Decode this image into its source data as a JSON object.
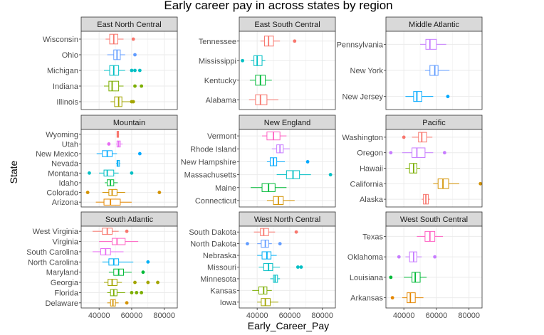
{
  "chart_data": {
    "type": "boxplot",
    "title": "Early career pay in across states by region",
    "xlabel": "Early_Career_Pay",
    "ylabel": "State",
    "x_ticks": [
      40000,
      60000,
      80000
    ],
    "x_tick_labels": [
      "40000",
      "60000",
      "80000"
    ],
    "xlim": [
      29000,
      88000
    ],
    "grid": true,
    "colors": {
      "background": "#ffffff",
      "panel": "#ffffff",
      "grid": "#ebebeb",
      "strip": "#d9d9d9",
      "panel_border": "#333333"
    },
    "panels": [
      {
        "region": "East North Central",
        "states": [
          {
            "name": "Wisconsin",
            "color": "#F8766D",
            "whisker_lo": 44000,
            "q1": 46500,
            "median": 49000,
            "q3": 51500,
            "whisker_hi": 55000,
            "outliers": [
              61000
            ]
          },
          {
            "name": "Ohio",
            "color": "#619CFF",
            "whisker_lo": 45000,
            "q1": 49000,
            "median": 51000,
            "q3": 53000,
            "whisker_hi": 56000,
            "outliers": [
              62000
            ]
          },
          {
            "name": "Michigan",
            "color": "#00BFC4",
            "whisker_lo": 43000,
            "q1": 46500,
            "median": 49000,
            "q3": 52000,
            "whisker_hi": 56000,
            "outliers": [
              60000,
              62000,
              65000
            ]
          },
          {
            "name": "Indiana",
            "color": "#7CAE00",
            "whisker_lo": 43000,
            "q1": 46000,
            "median": 48000,
            "q3": 52000,
            "whisker_hi": 55000,
            "outliers": [
              62000,
              66000
            ]
          },
          {
            "name": "Illinois",
            "color": "#A3A500",
            "whisker_lo": 47000,
            "q1": 49500,
            "median": 52000,
            "q3": 54000,
            "whisker_hi": 60000,
            "outliers": [
              60000,
              61000
            ]
          }
        ]
      },
      {
        "region": "East South Central",
        "states": [
          {
            "name": "Tennessee",
            "color": "#F8766D",
            "whisker_lo": 42000,
            "q1": 44500,
            "median": 47000,
            "q3": 50000,
            "whisker_hi": 54000,
            "outliers": [
              63000
            ]
          },
          {
            "name": "Mississippi",
            "color": "#00BFC4",
            "whisker_lo": 36000,
            "q1": 38000,
            "median": 40000,
            "q3": 43000,
            "whisker_hi": 45000,
            "outliers": [
              31000
            ]
          },
          {
            "name": "Kentucky",
            "color": "#00BA38",
            "whisker_lo": 35500,
            "q1": 39000,
            "median": 42000,
            "q3": 45000,
            "whisker_hi": 49000,
            "outliers": []
          },
          {
            "name": "Alabama",
            "color": "#F8766D",
            "whisker_lo": 35000,
            "q1": 39000,
            "median": 42000,
            "q3": 46000,
            "whisker_hi": 53000,
            "outliers": []
          }
        ]
      },
      {
        "region": "Middle Atlantic",
        "states": [
          {
            "name": "Pennsylvania",
            "color": "#C77CFF",
            "whisker_lo": 50000,
            "q1": 53500,
            "median": 56000,
            "q3": 60000,
            "whisker_hi": 66000,
            "outliers": []
          },
          {
            "name": "New York",
            "color": "#619CFF",
            "whisker_lo": 53000,
            "q1": 56000,
            "median": 59000,
            "q3": 61000,
            "whisker_hi": 68000,
            "outliers": []
          },
          {
            "name": "New Jersey",
            "color": "#00A9FF",
            "whisker_lo": 41000,
            "q1": 46000,
            "median": 48000,
            "q3": 51000,
            "whisker_hi": 58000,
            "outliers": [
              67000
            ]
          }
        ]
      },
      {
        "region": "Mountain",
        "states": [
          {
            "name": "Wyoming",
            "color": "#F8766D",
            "whisker_lo": 51000,
            "q1": 51000,
            "median": 51500,
            "q3": 52000,
            "whisker_hi": 52000,
            "outliers": []
          },
          {
            "name": "Utah",
            "color": "#E76BF3",
            "whisker_lo": 50500,
            "q1": 51000,
            "median": 52000,
            "q3": 53000,
            "whisker_hi": 54500,
            "outliers": [
              46000
            ]
          },
          {
            "name": "New Mexico",
            "color": "#00A9FF",
            "whisker_lo": 38500,
            "q1": 42000,
            "median": 45000,
            "q3": 48000,
            "whisker_hi": 51000,
            "outliers": [
              65000
            ]
          },
          {
            "name": "Nevada",
            "color": "#00B0F6",
            "whisker_lo": 50500,
            "q1": 51000,
            "median": 51500,
            "q3": 52500,
            "whisker_hi": 53000,
            "outliers": []
          },
          {
            "name": "Montana",
            "color": "#00BFC4",
            "whisker_lo": 40000,
            "q1": 43000,
            "median": 45000,
            "q3": 49000,
            "whisker_hi": 52000,
            "outliers": [
              34000,
              60000
            ]
          },
          {
            "name": "Idaho",
            "color": "#00BA38",
            "whisker_lo": 43500,
            "q1": 45000,
            "median": 47000,
            "q3": 49000,
            "whisker_hi": 51500,
            "outliers": []
          },
          {
            "name": "Colorado",
            "color": "#D39200",
            "whisker_lo": 42000,
            "q1": 46000,
            "median": 48000,
            "q3": 51000,
            "whisker_hi": 56000,
            "outliers": [
              33000,
              77000
            ]
          },
          {
            "name": "Arizona",
            "color": "#E58700",
            "whisker_lo": 38000,
            "q1": 43000,
            "median": 47000,
            "q3": 53000,
            "whisker_hi": 60000,
            "outliers": []
          }
        ]
      },
      {
        "region": "New England",
        "states": [
          {
            "name": "Vermont",
            "color": "#FF61C3",
            "whisker_lo": 43000,
            "q1": 46000,
            "median": 50000,
            "q3": 54000,
            "whisker_hi": 58000,
            "outliers": []
          },
          {
            "name": "Rhode Island",
            "color": "#C77CFF",
            "whisker_lo": 49000,
            "q1": 52000,
            "median": 54000,
            "q3": 56000,
            "whisker_hi": 60000,
            "outliers": []
          },
          {
            "name": "New Hampshire",
            "color": "#00A9FF",
            "whisker_lo": 46000,
            "q1": 48000,
            "median": 50000,
            "q3": 52000,
            "whisker_hi": 57000,
            "outliers": [
              71000
            ]
          },
          {
            "name": "Massachusetts",
            "color": "#00BFC4",
            "whisker_lo": 52000,
            "q1": 58000,
            "median": 62000,
            "q3": 66000,
            "whisker_hi": 73000,
            "outliers": [
              85000
            ]
          },
          {
            "name": "Maine",
            "color": "#00BA38",
            "whisker_lo": 36000,
            "q1": 43000,
            "median": 47000,
            "q3": 51000,
            "whisker_hi": 58000,
            "outliers": []
          },
          {
            "name": "Connecticut",
            "color": "#D39200",
            "whisker_lo": 46000,
            "q1": 50000,
            "median": 53000,
            "q3": 56000,
            "whisker_hi": 63000,
            "outliers": []
          }
        ]
      },
      {
        "region": "Pacific",
        "states": [
          {
            "name": "Washington",
            "color": "#F8766D",
            "whisker_lo": 45000,
            "q1": 49000,
            "median": 51000,
            "q3": 54000,
            "whisker_hi": 57500,
            "outliers": [
              40000
            ]
          },
          {
            "name": "Oregon",
            "color": "#C77CFF",
            "whisker_lo": 39000,
            "q1": 45000,
            "median": 48000,
            "q3": 53000,
            "whisker_hi": 58000,
            "outliers": [
              32000,
              65000
            ]
          },
          {
            "name": "Hawaii",
            "color": "#7CAE00",
            "whisker_lo": 41000,
            "q1": 43500,
            "median": 46000,
            "q3": 48000,
            "whisker_hi": 50000,
            "outliers": []
          },
          {
            "name": "California",
            "color": "#D39200",
            "whisker_lo": 58000,
            "q1": 61000,
            "median": 64000,
            "q3": 67500,
            "whisker_hi": 74000,
            "outliers": [
              87000
            ]
          },
          {
            "name": "Alaska",
            "color": "#F8766D",
            "whisker_lo": 51000,
            "q1": 52000,
            "median": 53500,
            "q3": 55000,
            "whisker_hi": 56000,
            "outliers": []
          }
        ]
      },
      {
        "region": "South Atlantic",
        "states": [
          {
            "name": "West Virginia",
            "color": "#F8766D",
            "whisker_lo": 36000,
            "q1": 42000,
            "median": 45000,
            "q3": 48000,
            "whisker_hi": 52000,
            "outliers": [
              57000
            ]
          },
          {
            "name": "Virginia",
            "color": "#FF61C3",
            "whisker_lo": 40000,
            "q1": 48000,
            "median": 51000,
            "q3": 56000,
            "whisker_hi": 64000,
            "outliers": []
          },
          {
            "name": "South Carolina",
            "color": "#E76BF3",
            "whisker_lo": 36000,
            "q1": 41000,
            "median": 44000,
            "q3": 47000,
            "whisker_hi": 55000,
            "outliers": []
          },
          {
            "name": "North Carolina",
            "color": "#00B0F6",
            "whisker_lo": 42000,
            "q1": 46000,
            "median": 49000,
            "q3": 52000,
            "whisker_hi": 61000,
            "outliers": [
              70000
            ]
          },
          {
            "name": "Maryland",
            "color": "#00BA38",
            "whisker_lo": 46000,
            "q1": 49000,
            "median": 52000,
            "q3": 55000,
            "whisker_hi": 60000,
            "outliers": [
              67000
            ]
          },
          {
            "name": "Georgia",
            "color": "#A3A500",
            "whisker_lo": 43000,
            "q1": 45500,
            "median": 48000,
            "q3": 51000,
            "whisker_hi": 54000,
            "outliers": [
              62000,
              70000,
              76000
            ]
          },
          {
            "name": "Florida",
            "color": "#7CAE00",
            "whisker_lo": 45000,
            "q1": 47000,
            "median": 49000,
            "q3": 51000,
            "whisker_hi": 56000,
            "outliers": [
              60000,
              63000,
              66000
            ]
          },
          {
            "name": "Delaware",
            "color": "#D39200",
            "whisker_lo": 45000,
            "q1": 47000,
            "median": 48500,
            "q3": 50000,
            "whisker_hi": 52000,
            "outliers": [
              57000
            ]
          }
        ]
      },
      {
        "region": "West North Central",
        "states": [
          {
            "name": "South Dakota",
            "color": "#F8766D",
            "whisker_lo": 38000,
            "q1": 42000,
            "median": 44000,
            "q3": 47000,
            "whisker_hi": 51000,
            "outliers": [
              64000
            ]
          },
          {
            "name": "North Dakota",
            "color": "#619CFF",
            "whisker_lo": 40000,
            "q1": 42500,
            "median": 45000,
            "q3": 47000,
            "whisker_hi": 49000,
            "outliers": [
              34000,
              54000
            ]
          },
          {
            "name": "Nebraska",
            "color": "#00B0F6",
            "whisker_lo": 40000,
            "q1": 43000,
            "median": 46000,
            "q3": 48500,
            "whisker_hi": 52000,
            "outliers": []
          },
          {
            "name": "Missouri",
            "color": "#00BFC4",
            "whisker_lo": 41000,
            "q1": 44000,
            "median": 47000,
            "q3": 49500,
            "whisker_hi": 54000,
            "outliers": [
              65000,
              67000
            ]
          },
          {
            "name": "Minnesota",
            "color": "#00BFC4",
            "whisker_lo": 48000,
            "q1": 50000,
            "median": 51000,
            "q3": 52500,
            "whisker_hi": 54000,
            "outliers": []
          },
          {
            "name": "Kansas",
            "color": "#7CAE00",
            "whisker_lo": 37000,
            "q1": 41000,
            "median": 44000,
            "q3": 46000,
            "whisker_hi": 49000,
            "outliers": []
          },
          {
            "name": "Iowa",
            "color": "#A3A500",
            "whisker_lo": 40000,
            "q1": 42500,
            "median": 45000,
            "q3": 48000,
            "whisker_hi": 53000,
            "outliers": []
          }
        ]
      },
      {
        "region": "West South Central",
        "states": [
          {
            "name": "Texas",
            "color": "#FF61C3",
            "whisker_lo": 48000,
            "q1": 53000,
            "median": 56000,
            "q3": 59000,
            "whisker_hi": 64000,
            "outliers": []
          },
          {
            "name": "Oklahoma",
            "color": "#C77CFF",
            "whisker_lo": 41000,
            "q1": 43500,
            "median": 46000,
            "q3": 48000,
            "whisker_hi": 51000,
            "outliers": [
              37000,
              59000
            ]
          },
          {
            "name": "Louisiana",
            "color": "#00BA38",
            "whisker_lo": 40000,
            "q1": 45000,
            "median": 47000,
            "q3": 50000,
            "whisker_hi": 54000,
            "outliers": [
              32000
            ]
          },
          {
            "name": "Arkansas",
            "color": "#E58700",
            "whisker_lo": 39000,
            "q1": 42000,
            "median": 44000,
            "q3": 47000,
            "whisker_hi": 52000,
            "outliers": [
              33000
            ]
          }
        ]
      }
    ]
  }
}
